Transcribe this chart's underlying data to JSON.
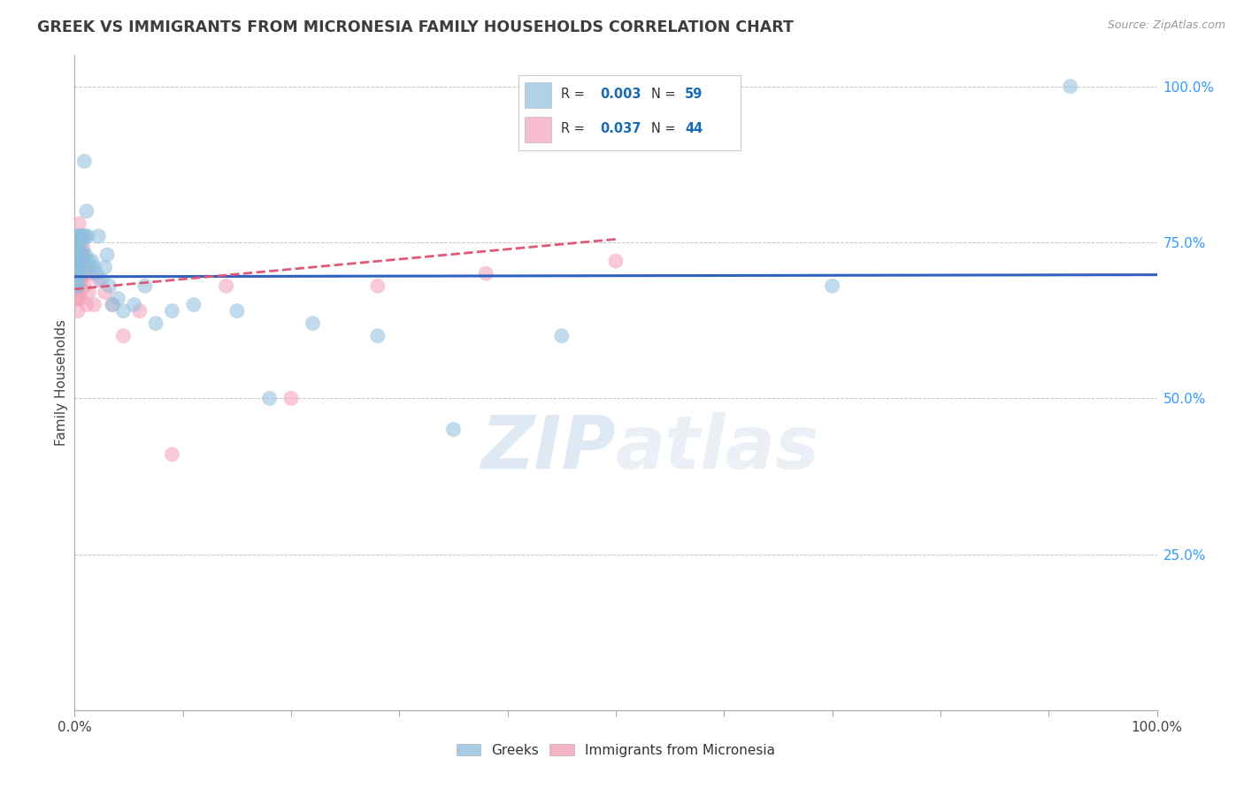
{
  "title": "GREEK VS IMMIGRANTS FROM MICRONESIA FAMILY HOUSEHOLDS CORRELATION CHART",
  "source_text": "Source: ZipAtlas.com",
  "ylabel": "Family Households",
  "watermark": "ZIPatlas",
  "title_color": "#3d3d3d",
  "title_fontsize": 12.5,
  "blue_color": "#90bedd",
  "pink_color": "#f4a0b8",
  "blue_line_color": "#3060c0",
  "pink_line_color": "#e05878",
  "grid_color": "#c8c8c8",
  "background_color": "#ffffff",
  "legend_color": "#1a6ab5",
  "blue_scatter_x": [
    0.001,
    0.001,
    0.001,
    0.002,
    0.002,
    0.002,
    0.002,
    0.002,
    0.003,
    0.003,
    0.003,
    0.003,
    0.003,
    0.004,
    0.004,
    0.004,
    0.004,
    0.005,
    0.005,
    0.005,
    0.005,
    0.006,
    0.006,
    0.007,
    0.007,
    0.008,
    0.008,
    0.009,
    0.009,
    0.01,
    0.01,
    0.011,
    0.012,
    0.013,
    0.014,
    0.016,
    0.018,
    0.02,
    0.022,
    0.025,
    0.028,
    0.03,
    0.032,
    0.035,
    0.04,
    0.045,
    0.055,
    0.065,
    0.075,
    0.09,
    0.11,
    0.15,
    0.18,
    0.22,
    0.28,
    0.35,
    0.45,
    0.7,
    0.92
  ],
  "blue_scatter_y": [
    0.69,
    0.71,
    0.74,
    0.68,
    0.7,
    0.72,
    0.74,
    0.76,
    0.68,
    0.69,
    0.71,
    0.72,
    0.75,
    0.7,
    0.72,
    0.74,
    0.76,
    0.7,
    0.72,
    0.73,
    0.76,
    0.71,
    0.76,
    0.72,
    0.75,
    0.73,
    0.76,
    0.88,
    0.71,
    0.73,
    0.76,
    0.8,
    0.76,
    0.72,
    0.71,
    0.72,
    0.71,
    0.7,
    0.76,
    0.69,
    0.71,
    0.73,
    0.68,
    0.65,
    0.66,
    0.64,
    0.65,
    0.68,
    0.62,
    0.64,
    0.65,
    0.64,
    0.5,
    0.62,
    0.6,
    0.45,
    0.6,
    0.68,
    1.0
  ],
  "pink_scatter_x": [
    0.001,
    0.001,
    0.001,
    0.002,
    0.002,
    0.002,
    0.002,
    0.003,
    0.003,
    0.003,
    0.003,
    0.004,
    0.004,
    0.004,
    0.004,
    0.004,
    0.005,
    0.005,
    0.005,
    0.005,
    0.006,
    0.006,
    0.006,
    0.007,
    0.007,
    0.008,
    0.008,
    0.009,
    0.01,
    0.011,
    0.013,
    0.015,
    0.018,
    0.022,
    0.028,
    0.035,
    0.045,
    0.06,
    0.09,
    0.14,
    0.2,
    0.28,
    0.38,
    0.5
  ],
  "pink_scatter_y": [
    0.68,
    0.7,
    0.72,
    0.66,
    0.68,
    0.7,
    0.72,
    0.64,
    0.66,
    0.68,
    0.72,
    0.68,
    0.7,
    0.72,
    0.75,
    0.78,
    0.68,
    0.7,
    0.72,
    0.76,
    0.66,
    0.69,
    0.72,
    0.7,
    0.73,
    0.71,
    0.74,
    0.68,
    0.7,
    0.65,
    0.67,
    0.7,
    0.65,
    0.69,
    0.67,
    0.65,
    0.6,
    0.64,
    0.41,
    0.68,
    0.5,
    0.68,
    0.7,
    0.72
  ],
  "blue_line_x": [
    0.0,
    1.0
  ],
  "blue_line_y": [
    0.695,
    0.698
  ],
  "pink_line_x": [
    0.0,
    0.5
  ],
  "pink_line_y": [
    0.675,
    0.755
  ],
  "xtick_positions": [
    0.0,
    0.1,
    0.2,
    0.3,
    0.4,
    0.5,
    0.6,
    0.7,
    0.8,
    0.9,
    1.0
  ],
  "ytick_positions": [
    0.0,
    0.25,
    0.5,
    0.75,
    1.0
  ],
  "ytick_labels": [
    "",
    "25.0%",
    "50.0%",
    "75.0%",
    "100.0%"
  ],
  "xlim": [
    0.0,
    1.0
  ],
  "ylim": [
    0.0,
    1.05
  ]
}
